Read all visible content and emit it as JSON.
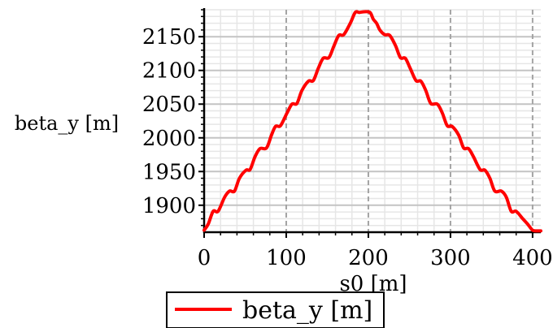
{
  "chart_data": {
    "type": "line",
    "xlabel": "s0 [m]",
    "ylabel": "beta_y [m]",
    "xlim": [
      0,
      410
    ],
    "ylim": [
      1860,
      2190
    ],
    "x_ticks": [
      "0",
      "100",
      "200",
      "300",
      "400"
    ],
    "y_ticks": [
      "1900",
      "1950",
      "2000",
      "2050",
      "2100",
      "2150"
    ],
    "grid": true,
    "legend_position": "bottom",
    "series": [
      {
        "name": "beta_y [m]",
        "color": "#ff0000",
        "x": [
          0,
          5,
          11,
          17,
          25,
          31,
          37,
          43,
          51,
          56,
          62,
          68,
          76,
          82,
          87,
          93,
          101,
          107,
          113,
          119,
          127,
          133,
          139,
          145,
          152,
          158,
          164,
          170,
          178,
          184,
          189,
          195,
          202,
          206,
          210,
          214,
          220,
          226,
          233,
          239,
          245,
          251,
          258,
          264,
          270,
          276,
          284,
          290,
          296,
          302,
          310,
          316,
          322,
          328,
          336,
          342,
          348,
          354,
          362,
          368,
          374,
          380,
          388,
          394,
          400,
          406,
          410
        ],
        "y": [
          1863,
          1872,
          1891,
          1891,
          1912,
          1921,
          1921,
          1940,
          1952,
          1953,
          1972,
          1984,
          1985,
          2004,
          2017,
          2018,
          2037,
          2050,
          2051,
          2070,
          2084,
          2085,
          2103,
          2118,
          2119,
          2136,
          2152,
          2153,
          2170,
          2186,
          2186,
          2187,
          2186,
          2176,
          2170,
          2160,
          2153,
          2152,
          2137,
          2119,
          2118,
          2103,
          2085,
          2084,
          2070,
          2051,
          2050,
          2037,
          2018,
          2017,
          2004,
          1985,
          1984,
          1972,
          1953,
          1952,
          1940,
          1921,
          1921,
          1912,
          1891,
          1891,
          1880,
          1872,
          1863,
          1862,
          1862
        ]
      }
    ]
  }
}
